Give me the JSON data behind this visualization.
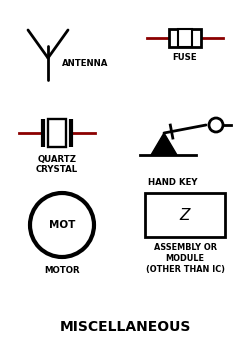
{
  "bg_color": "#ffffff",
  "line_color": "#000000",
  "accent_color": "#8b0000",
  "fig_width": 2.5,
  "fig_height": 3.43,
  "title": "MISCELLANEOUS",
  "title_fontsize": 10,
  "label_fontsize": 6.2,
  "symbol_linewidth": 2.0,
  "antenna_label": "ANTENNA",
  "fuse_label": "FUSE",
  "quartz_label": "QUARTZ\nCRYSTAL",
  "handkey_label": "HAND KEY",
  "motor_label": "MOTOR",
  "assembly_label": "ASSEMBLY OR\nMODULE\n(OTHER THAN IC)",
  "mot_label": "MOT"
}
